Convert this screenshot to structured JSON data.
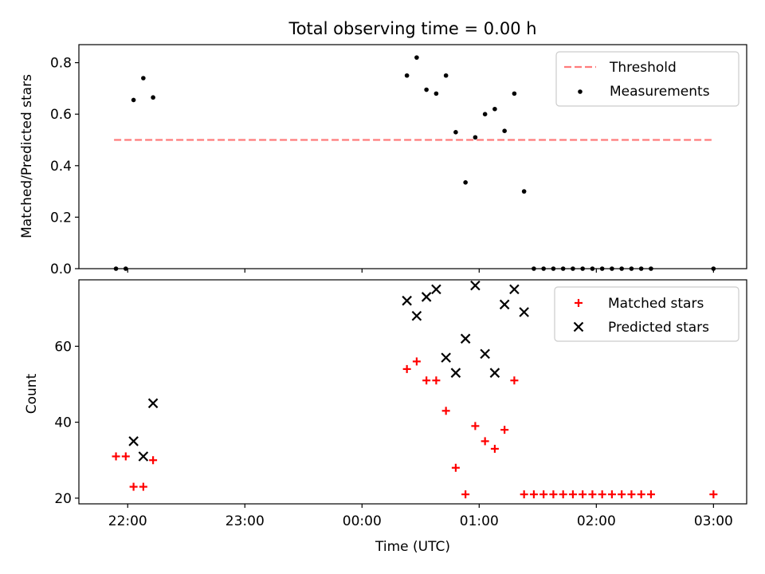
{
  "chart_data": [
    {
      "type": "scatter",
      "title": "Total observing time = 0.00 h",
      "ylabel": "Matched/Predicted stars",
      "xlabel": "",
      "ylim": [
        0,
        0.87
      ],
      "yticks": [
        0.0,
        0.2,
        0.4,
        0.6,
        0.8
      ],
      "ytick_labels": [
        "0.0",
        "0.2",
        "0.4",
        "0.6",
        "0.8"
      ],
      "legend_position": "top-right",
      "threshold": {
        "name": "Threshold",
        "value": 0.5,
        "x_start": "21:53",
        "x_end": "02:59",
        "color": "#ff7b7b"
      },
      "series": [
        {
          "name": "Measurements",
          "marker": "dot",
          "color": "#000000",
          "x": [
            "21:54",
            "21:59",
            "22:03",
            "22:08",
            "22:13",
            "00:23",
            "00:28",
            "00:33",
            "00:38",
            "00:43",
            "00:48",
            "00:53",
            "00:58",
            "01:03",
            "01:08",
            "01:13",
            "01:18",
            "01:23",
            "01:28",
            "01:33",
            "01:38",
            "01:43",
            "01:48",
            "01:53",
            "01:58",
            "02:03",
            "02:08",
            "02:13",
            "02:18",
            "02:23",
            "02:28",
            "03:00"
          ],
          "y": [
            0.0,
            0.0,
            0.655,
            0.74,
            0.665,
            0.75,
            0.82,
            0.695,
            0.68,
            0.75,
            0.53,
            0.335,
            0.51,
            0.6,
            0.62,
            0.535,
            0.68,
            0.3,
            0.0,
            0.0,
            0.0,
            0.0,
            0.0,
            0.0,
            0.0,
            0.0,
            0.0,
            0.0,
            0.0,
            0.0,
            0.0,
            0.0
          ]
        }
      ]
    },
    {
      "type": "scatter",
      "title": "",
      "ylabel": "Count",
      "xlabel": "Time (UTC)",
      "ylim": [
        18.5,
        77.5
      ],
      "yticks": [
        20,
        40,
        60
      ],
      "ytick_labels": [
        "20",
        "40",
        "60"
      ],
      "xlim": [
        "21:35",
        "03:17"
      ],
      "xticks": [
        "22:00",
        "23:00",
        "00:00",
        "01:00",
        "02:00",
        "03:00"
      ],
      "legend_position": "top-right",
      "series": [
        {
          "name": "Matched stars",
          "marker": "plus",
          "color": "#ff0000",
          "x": [
            "21:54",
            "21:59",
            "22:03",
            "22:08",
            "22:13",
            "00:23",
            "00:28",
            "00:33",
            "00:38",
            "00:43",
            "00:48",
            "00:53",
            "00:58",
            "01:03",
            "01:08",
            "01:13",
            "01:18",
            "01:23",
            "01:28",
            "01:33",
            "01:38",
            "01:43",
            "01:48",
            "01:53",
            "01:58",
            "02:03",
            "02:08",
            "02:13",
            "02:18",
            "02:23",
            "02:28",
            "03:00"
          ],
          "y": [
            31,
            31,
            23,
            23,
            30,
            54,
            56,
            51,
            51,
            43,
            28,
            21,
            39,
            35,
            33,
            38,
            51,
            21,
            21,
            21,
            21,
            21,
            21,
            21,
            21,
            21,
            21,
            21,
            21,
            21,
            21,
            21
          ]
        },
        {
          "name": "Predicted stars",
          "marker": "x",
          "color": "#000000",
          "x": [
            "22:03",
            "22:08",
            "22:13",
            "00:23",
            "00:28",
            "00:33",
            "00:38",
            "00:43",
            "00:48",
            "00:53",
            "00:58",
            "01:03",
            "01:08",
            "01:13",
            "01:18",
            "01:23"
          ],
          "y": [
            35,
            31,
            45,
            72,
            68,
            73,
            75,
            57,
            53,
            62,
            76,
            58,
            53,
            71,
            75,
            69
          ]
        }
      ]
    }
  ]
}
